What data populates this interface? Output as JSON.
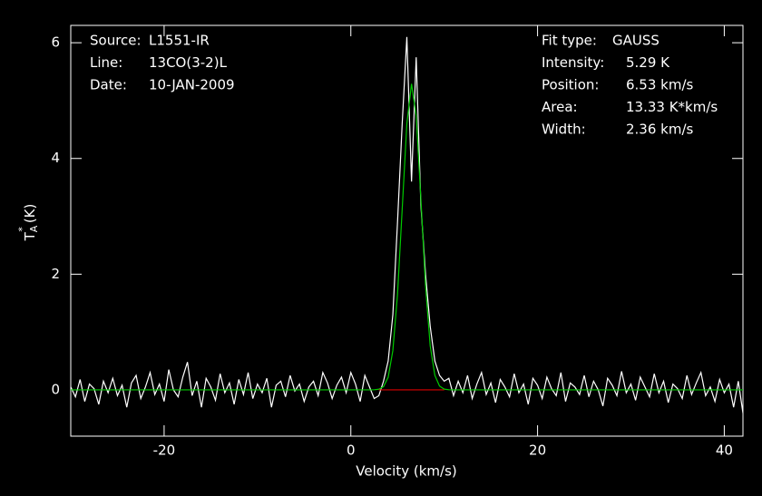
{
  "chart_data": {
    "type": "line",
    "xlabel": "Velocity (km/s)",
    "ylabel": {
      "symbol": "T",
      "sub": "A",
      "sup": "*",
      "unit": "(K)"
    },
    "xlim": [
      -30,
      42
    ],
    "ylim": [
      -0.8,
      6.3
    ],
    "xticks": [
      -20,
      0,
      20,
      40
    ],
    "yticks": [
      0,
      2,
      4,
      6
    ],
    "info_left": [
      [
        "Source:",
        "L1551-IR"
      ],
      [
        "Line:",
        "13CO(3-2)L"
      ],
      [
        "Date:",
        "10-JAN-2009"
      ]
    ],
    "info_right": [
      [
        "Fit type:",
        "GAUSS"
      ],
      [
        "Intensity:",
        "5.29 K"
      ],
      [
        "Position:",
        "6.53 km/s"
      ],
      [
        "Area:",
        "13.33 K*km/s"
      ],
      [
        "Width:",
        "2.36 km/s"
      ]
    ],
    "series": [
      {
        "color": "#ffffff",
        "x": [
          -30,
          -29.5,
          -29,
          -28.5,
          -28,
          -27.5,
          -27,
          -26.5,
          -26,
          -25.5,
          -25,
          -24.5,
          -24,
          -23.5,
          -23,
          -22.5,
          -22,
          -21.5,
          -21,
          -20.5,
          -20,
          -19.5,
          -19,
          -18.5,
          -18,
          -17.5,
          -17,
          -16.5,
          -16,
          -15.5,
          -15,
          -14.5,
          -14,
          -13.5,
          -13,
          -12.5,
          -12,
          -11.5,
          -11,
          -10.5,
          -10,
          -9.5,
          -9,
          -8.5,
          -8,
          -7.5,
          -7,
          -6.5,
          -6,
          -5.5,
          -5,
          -4.5,
          -4,
          -3.5,
          -3,
          -2.5,
          -2,
          -1.5,
          -1,
          -0.5,
          0,
          0.5,
          1,
          1.5,
          2,
          2.5,
          3,
          3.5,
          4,
          4.5,
          5,
          5.5,
          6,
          6.5,
          7,
          7.5,
          8,
          8.5,
          9,
          9.5,
          10,
          10.5,
          11,
          11.5,
          12,
          12.5,
          13,
          13.5,
          14,
          14.5,
          15,
          15.5,
          16,
          16.5,
          17,
          17.5,
          18,
          18.5,
          19,
          19.5,
          20,
          20.5,
          21,
          21.5,
          22,
          22.5,
          23,
          23.5,
          24,
          24.5,
          25,
          25.5,
          26,
          26.5,
          27,
          27.5,
          28,
          28.5,
          29,
          29.5,
          30,
          30.5,
          31,
          31.5,
          32,
          32.5,
          33,
          33.5,
          34,
          34.5,
          35,
          35.5,
          36,
          36.5,
          37,
          37.5,
          38,
          38.5,
          39,
          39.5,
          40,
          40.5,
          41,
          41.5,
          42
        ],
        "values": [
          0.05,
          -0.12,
          0.18,
          -0.2,
          0.1,
          0.02,
          -0.25,
          0.15,
          -0.05,
          0.2,
          -0.1,
          0.08,
          -0.3,
          0.12,
          0.25,
          -0.15,
          0.05,
          0.3,
          -0.08,
          0.1,
          -0.2,
          0.35,
          0.0,
          -0.12,
          0.22,
          0.48,
          -0.1,
          0.15,
          -0.3,
          0.2,
          0.05,
          -0.18,
          0.28,
          -0.05,
          0.12,
          -0.25,
          0.18,
          -0.08,
          0.3,
          -0.15,
          0.1,
          -0.05,
          0.2,
          -0.3,
          0.08,
          0.15,
          -0.12,
          0.25,
          -0.02,
          0.1,
          -0.2,
          0.05,
          0.15,
          -0.1,
          0.3,
          0.12,
          -0.15,
          0.08,
          0.22,
          -0.05,
          0.3,
          0.1,
          -0.2,
          0.25,
          0.05,
          -0.15,
          -0.1,
          0.15,
          0.5,
          1.3,
          2.9,
          4.6,
          6.1,
          3.6,
          5.75,
          3.2,
          2.0,
          1.1,
          0.5,
          0.25,
          0.15,
          0.2,
          -0.1,
          0.15,
          -0.05,
          0.25,
          -0.15,
          0.1,
          0.3,
          -0.08,
          0.12,
          -0.22,
          0.18,
          0.05,
          -0.12,
          0.28,
          -0.05,
          0.1,
          -0.25,
          0.2,
          0.08,
          -0.15,
          0.22,
          0.02,
          -0.1,
          0.3,
          -0.2,
          0.12,
          0.05,
          -0.08,
          0.25,
          -0.12,
          0.15,
          0.0,
          -0.28,
          0.2,
          0.08,
          -0.1,
          0.32,
          -0.05,
          0.1,
          -0.18,
          0.22,
          0.05,
          -0.12,
          0.28,
          -0.05,
          0.15,
          -0.22,
          0.1,
          0.02,
          -0.15,
          0.25,
          -0.08,
          0.12,
          0.3,
          -0.1,
          0.05,
          -0.2,
          0.18,
          -0.05,
          0.1,
          -0.3,
          0.15,
          -0.4
        ]
      },
      {
        "color": "#00cc00",
        "x": [
          -30,
          2,
          2.5,
          3,
          3.5,
          4,
          4.5,
          5,
          5.5,
          6,
          6.5,
          7,
          7.5,
          8,
          8.5,
          9,
          9.5,
          10,
          10.5,
          11,
          42
        ],
        "values": [
          0,
          0,
          0.002,
          0.011,
          0.055,
          0.218,
          0.68,
          1.65,
          3.12,
          4.6,
          5.29,
          4.74,
          3.31,
          1.8,
          0.76,
          0.25,
          0.066,
          0.013,
          0.002,
          0,
          0
        ]
      },
      {
        "color": "#dd0000",
        "x": [
          3,
          10
        ],
        "values": [
          0,
          0
        ]
      }
    ]
  }
}
